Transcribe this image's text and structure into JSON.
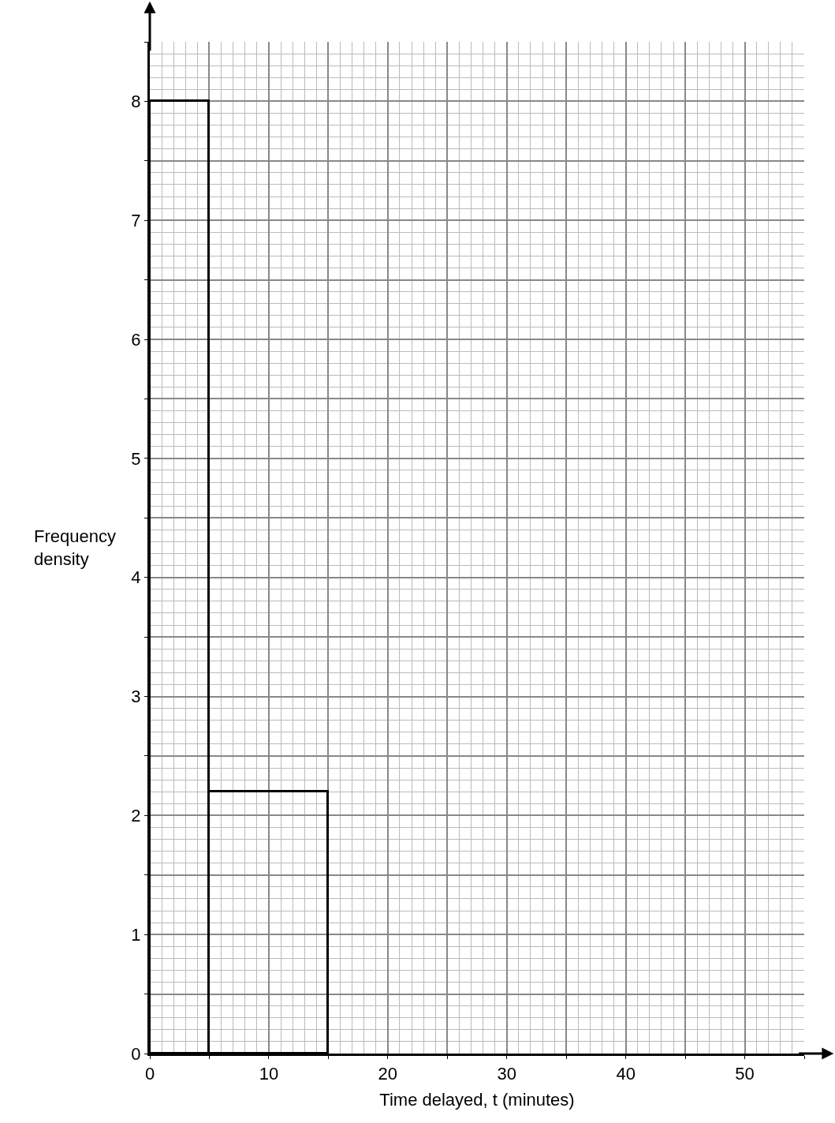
{
  "chart_data": {
    "type": "histogram",
    "xlabel": "Time delayed, t (minutes)",
    "ylabel": "Frequency density",
    "bins": [
      0,
      5,
      15
    ],
    "values": [
      8,
      2.2
    ],
    "color": "#000000",
    "xlim": [
      0,
      55
    ],
    "ylim": [
      0,
      8.5
    ],
    "xticks": [
      0,
      {
        "value": 5,
        "label": null
      },
      10,
      {
        "value": 15,
        "label": null
      },
      20,
      {
        "value": 25,
        "label": null
      },
      30,
      {
        "value": 35,
        "label": null
      },
      40,
      {
        "value": 45,
        "label": null
      },
      50,
      {
        "value": 55,
        "label": null
      }
    ],
    "yticks": [
      0,
      {
        "value": 0.5,
        "label": null
      },
      1,
      {
        "value": 1.5,
        "label": null
      },
      2,
      {
        "value": 2.5,
        "label": null
      },
      3,
      {
        "value": 3.5,
        "label": null
      },
      4,
      {
        "value": 4.5,
        "label": null
      },
      5,
      {
        "value": 5.5,
        "label": null
      },
      6,
      {
        "value": 6.5,
        "label": null
      },
      7,
      {
        "value": 7.5,
        "label": null
      },
      8,
      {
        "value": 8.5,
        "label": null
      }
    ],
    "grid": true,
    "legend": false
  }
}
